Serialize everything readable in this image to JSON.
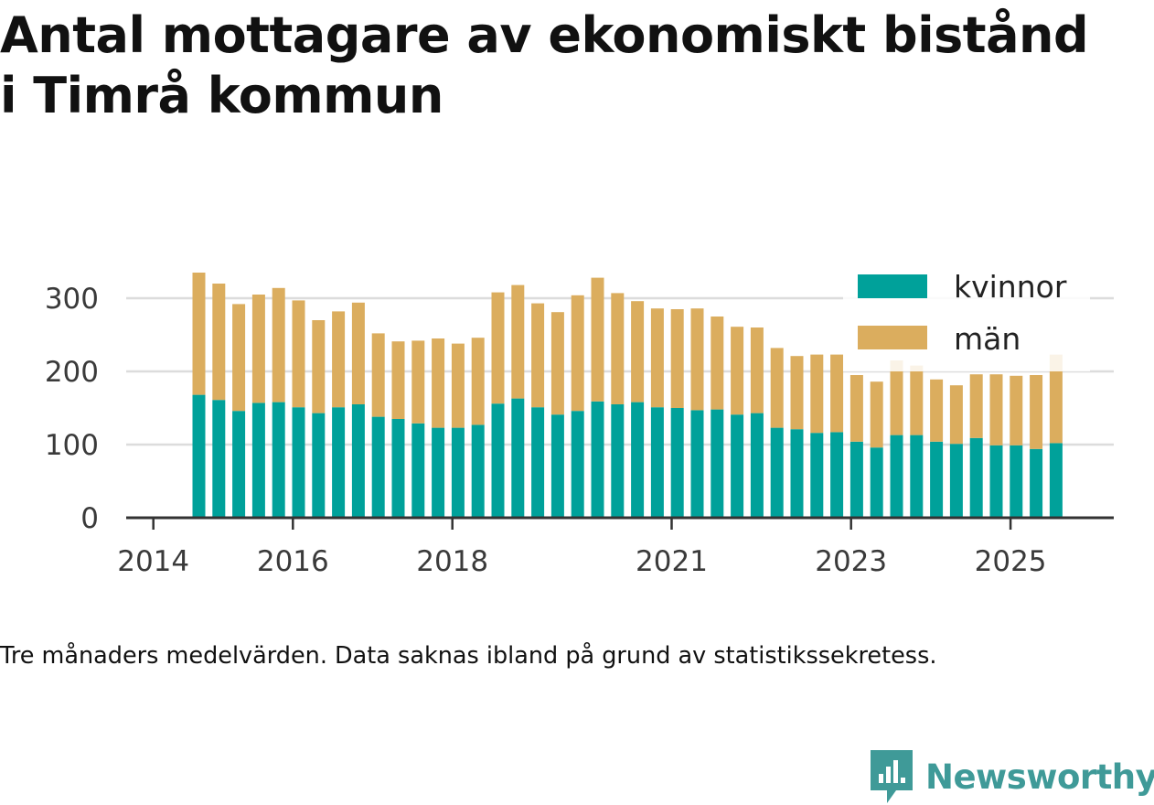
{
  "title_lines": [
    "Antal mottagare av ekonomiskt bistånd",
    "i Timrå kommun"
  ],
  "note": "Tre månaders medelvärden. Data saknas ibland på grund av statistikssekretess.",
  "brand": {
    "name": "Newsworthy",
    "icon": "newsworthy-logo-icon",
    "color": "#3f9a98"
  },
  "chart_data": {
    "type": "bar",
    "stacked": true,
    "x_unit": "quarter",
    "x": [
      "2014-Q3",
      "2014-Q4",
      "2015-Q1",
      "2015-Q2",
      "2015-Q3",
      "2015-Q4",
      "2016-Q1",
      "2016-Q2",
      "2016-Q3",
      "2016-Q4",
      "2017-Q1",
      "2017-Q2",
      "2017-Q3",
      "2017-Q4",
      "2018-Q1",
      "2018-Q2",
      "2018-Q3",
      "2018-Q4",
      "2019-Q1",
      "2019-Q2",
      "2019-Q3",
      "2019-Q4",
      "2020-Q1",
      "2020-Q2",
      "2020-Q3",
      "2020-Q4",
      "2021-Q1",
      "2021-Q2",
      "2021-Q3",
      "2021-Q4",
      "2022-Q1",
      "2022-Q2",
      "2022-Q3",
      "2022-Q4",
      "2023-Q1",
      "2023-Q2",
      "2023-Q3",
      "2023-Q4",
      "2024-Q1",
      "2024-Q2",
      "2024-Q3",
      "2024-Q4",
      "2025-Q1",
      "2025-Q2"
    ],
    "series": [
      {
        "name": "kvinnor",
        "color": "#00a19a",
        "values": [
          168,
          161,
          146,
          157,
          158,
          151,
          143,
          151,
          155,
          138,
          135,
          129,
          123,
          123,
          127,
          156,
          163,
          151,
          141,
          146,
          159,
          155,
          158,
          151,
          150,
          147,
          148,
          141,
          143,
          123,
          121,
          116,
          117,
          104,
          96,
          113,
          113,
          104,
          101,
          109,
          99,
          99,
          94,
          102
        ]
      },
      {
        "name": "män",
        "color": "#dbad5e",
        "values": [
          167,
          159,
          146,
          148,
          156,
          146,
          127,
          131,
          139,
          114,
          106,
          113,
          122,
          115,
          119,
          152,
          155,
          142,
          140,
          158,
          169,
          152,
          138,
          135,
          135,
          139,
          127,
          120,
          117,
          109,
          100,
          107,
          106,
          91,
          90,
          102,
          95,
          85,
          80,
          87,
          97,
          95,
          101,
          121
        ]
      }
    ],
    "partially_obscured": [
      "2023-Q2",
      "2023-Q3",
      "2024-Q2",
      "2024-Q3",
      "2024-Q4",
      "2025-Q1",
      "2025-Q2"
    ],
    "y_ticks": [
      0,
      100,
      200,
      300
    ],
    "x_tick_labels": [
      {
        "label": "2014",
        "x": "2014-Q2"
      },
      {
        "label": "2016",
        "x": "2016-Q1"
      },
      {
        "label": "2018",
        "x": "2018-Q1"
      },
      {
        "label": "2021",
        "x": "2020-Q4"
      },
      {
        "label": "2023",
        "x": "2023-Q1"
      },
      {
        "label": "2025",
        "x": "2025-Q1"
      }
    ],
    "ylim": [
      0,
      335
    ],
    "grid": true,
    "legend_position": "top-right"
  }
}
